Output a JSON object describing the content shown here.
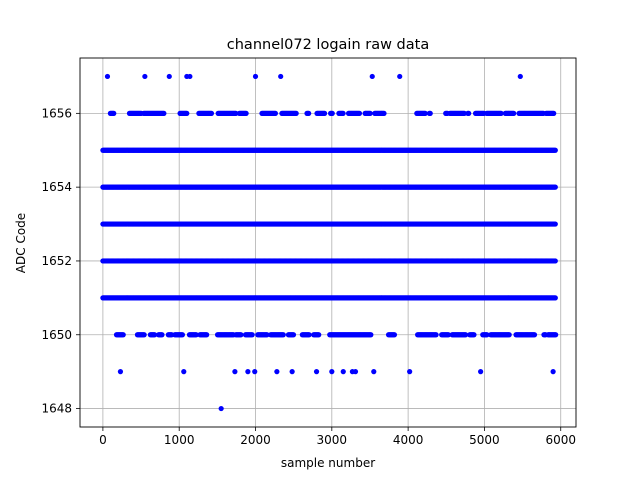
{
  "chart_data": {
    "type": "scatter",
    "title": "channel072 logain raw data",
    "xlabel": "sample number",
    "ylabel": "ADC Code",
    "xlim": [
      -300,
      6200
    ],
    "ylim": [
      1647.5,
      1657.5
    ],
    "xticks": [
      0,
      1000,
      2000,
      3000,
      4000,
      5000,
      6000
    ],
    "yticks": [
      1648,
      1650,
      1652,
      1654,
      1656
    ],
    "grid": true,
    "marker_color": "#0000ff",
    "series": [
      {
        "x_range": [
          0,
          5935
        ],
        "levels": [
          {
            "y": 1651,
            "coverage": "dense"
          },
          {
            "y": 1652,
            "coverage": "dense"
          },
          {
            "y": 1653,
            "coverage": "dense"
          },
          {
            "y": 1654,
            "coverage": "dense"
          },
          {
            "y": 1655,
            "coverage": "dense"
          },
          {
            "y": 1650,
            "coverage": "sparse"
          },
          {
            "y": 1656,
            "coverage": "sparse"
          },
          {
            "y": 1649,
            "x": [
              230,
              1060,
              1730,
              1900,
              1990,
              2280,
              2480,
              2800,
              3000,
              3150,
              3270,
              3310,
              3550,
              4020,
              4950,
              5900
            ]
          },
          {
            "y": 1657,
            "x": [
              60,
              550,
              870,
              1100,
              1140,
              2000,
              2330,
              3530,
              3890,
              5470
            ]
          },
          {
            "y": 1648,
            "x": [
              1550
            ]
          }
        ]
      }
    ]
  }
}
